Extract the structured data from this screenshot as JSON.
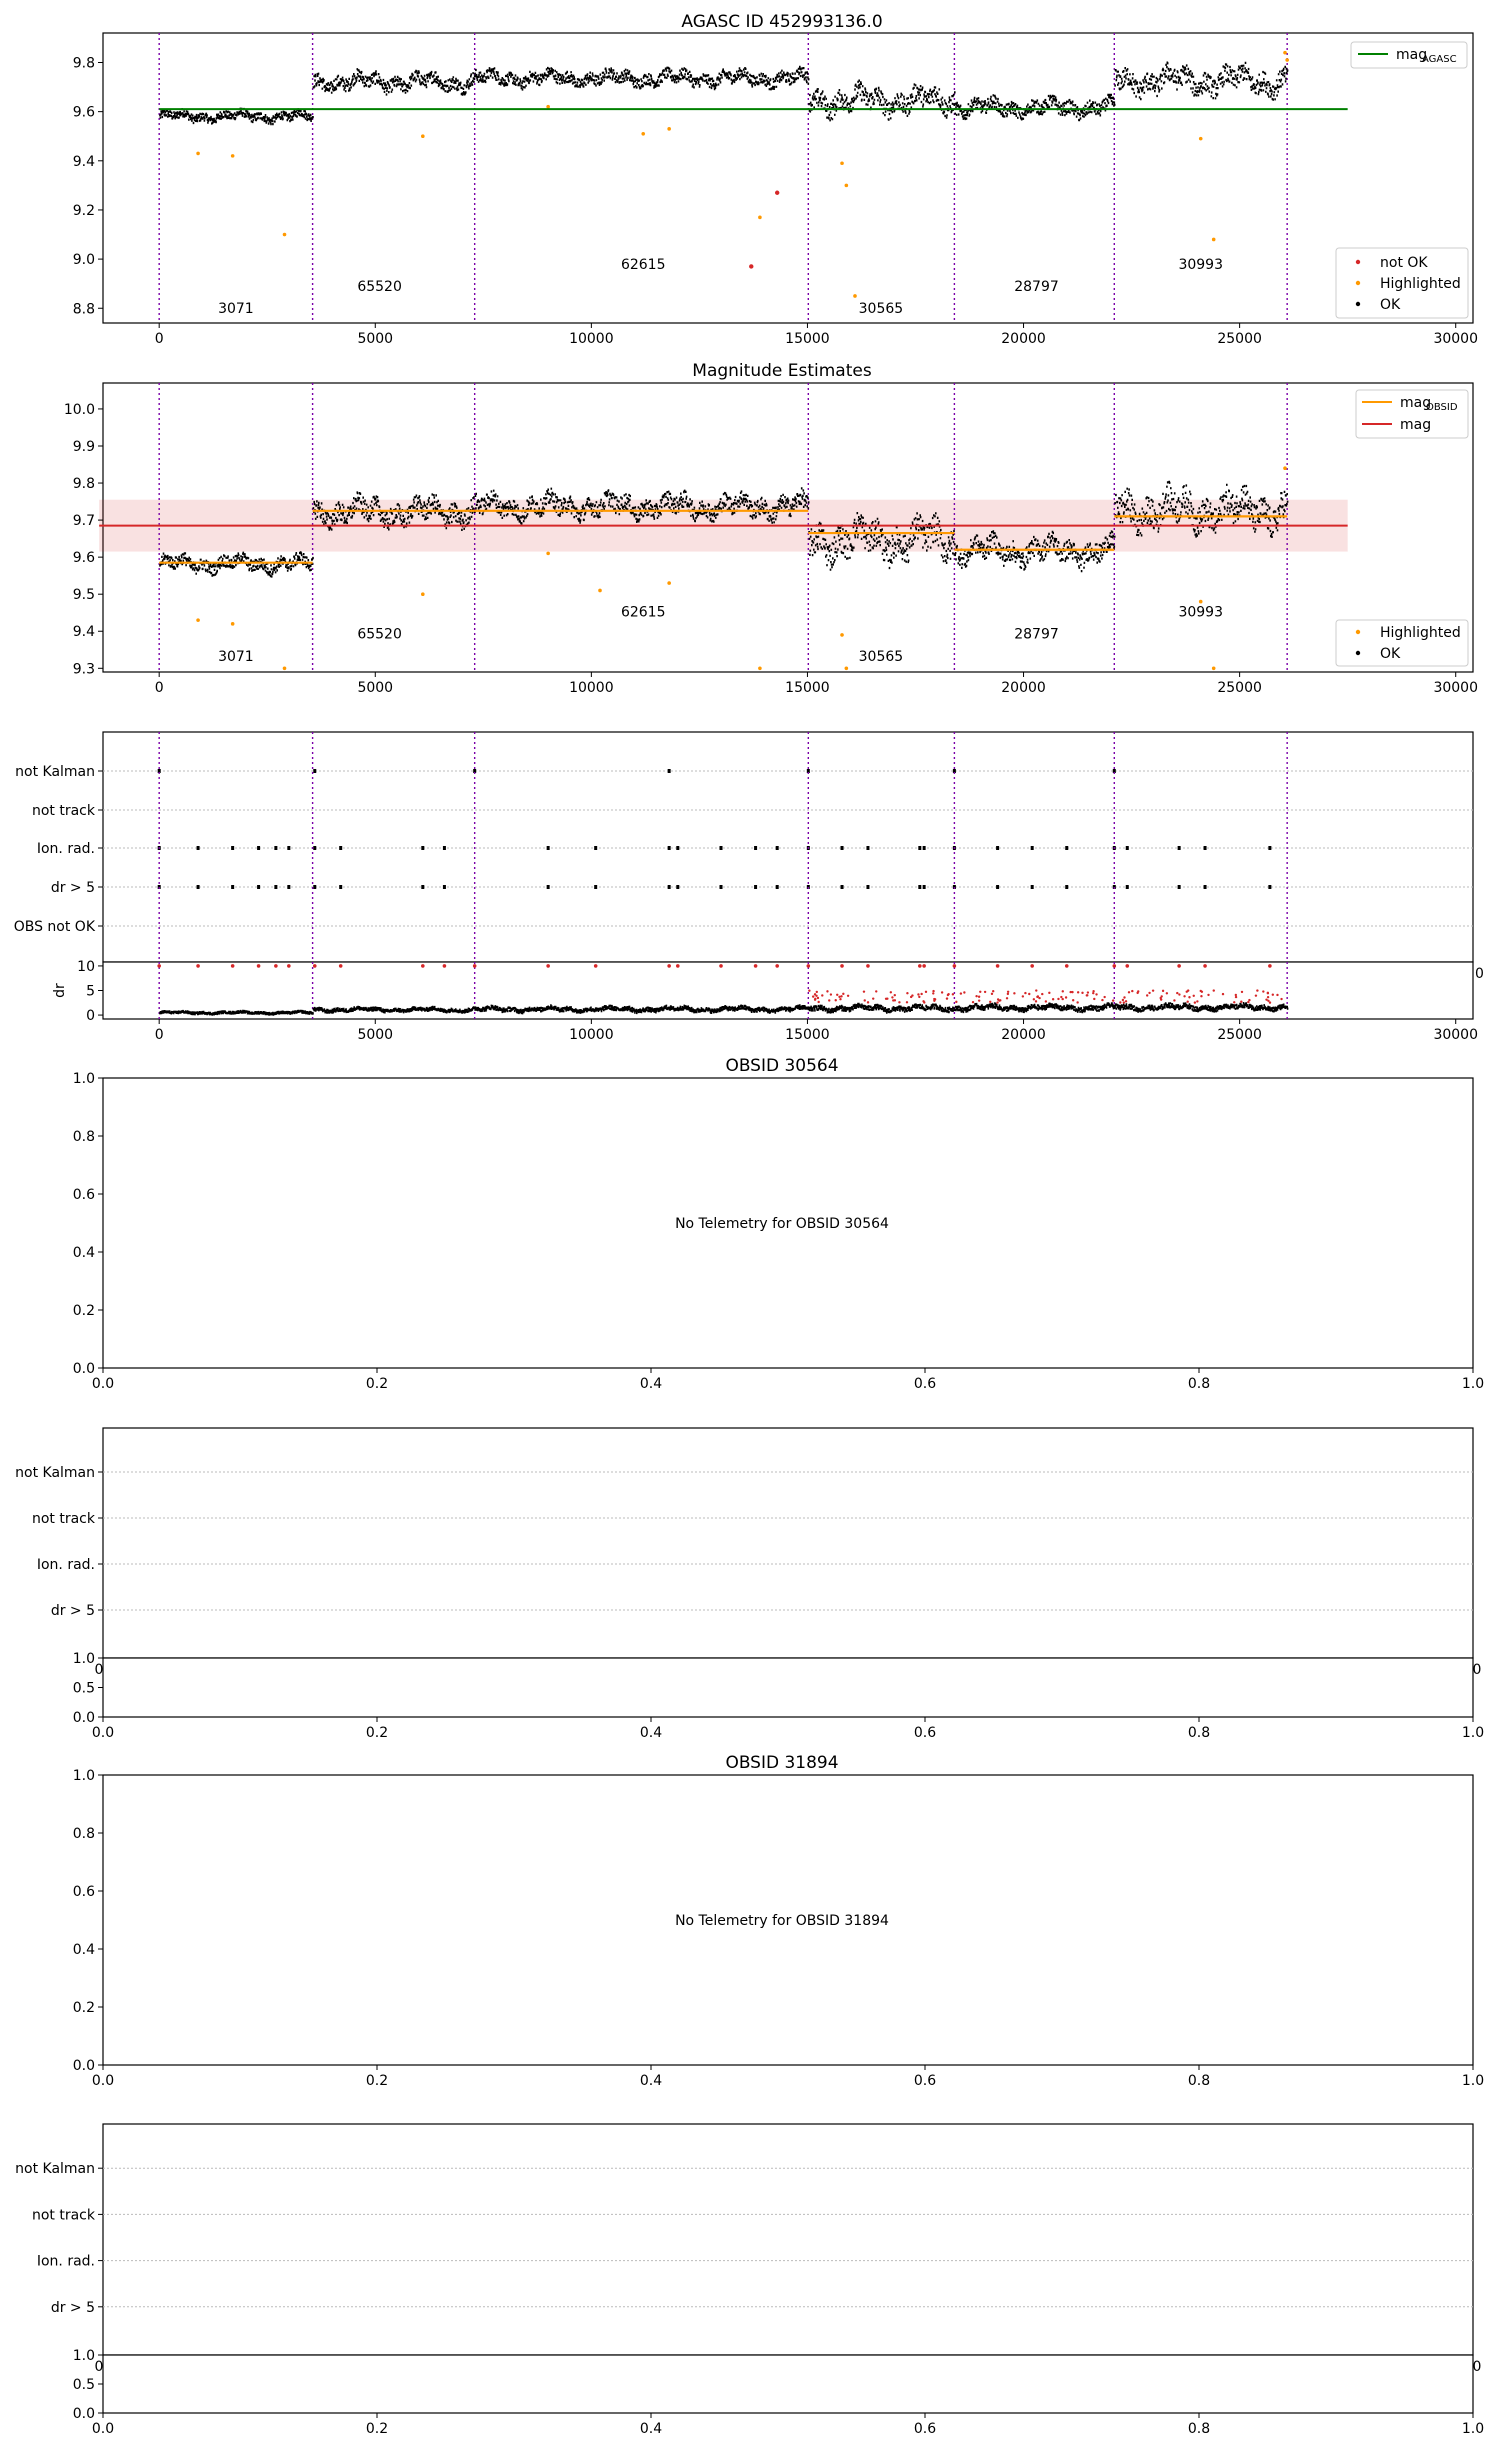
{
  "page": {
    "title": "AGASC ID 452993136.0"
  },
  "chart_data": [
    {
      "id": "agasc",
      "type": "scatter",
      "title": "AGASC ID 452993136.0",
      "xlabel": "",
      "ylabel": "",
      "xlim": [
        -1300,
        30400
      ],
      "ylim": [
        8.74,
        9.92
      ],
      "xticks": [
        0,
        5000,
        10000,
        15000,
        20000,
        25000,
        30000
      ],
      "yticks": [
        8.8,
        9.0,
        9.2,
        9.4,
        9.6,
        9.8
      ],
      "ytick_labels": [
        "8.8",
        "9.0",
        "9.2",
        "9.4",
        "9.6",
        "9.8"
      ],
      "obs_boundaries": [
        0,
        3550,
        7300,
        15020,
        18400,
        22100,
        26100
      ],
      "obsid_labels": [
        {
          "text": "3071",
          "x": 1775,
          "y": 8.78
        },
        {
          "text": "65520",
          "x": 5100,
          "y": 8.87
        },
        {
          "text": "62615",
          "x": 11200,
          "y": 8.96
        },
        {
          "text": "30565",
          "x": 16700,
          "y": 8.78
        },
        {
          "text": "28797",
          "x": 20300,
          "y": 8.87
        },
        {
          "text": "30993",
          "x": 24100,
          "y": 8.96
        }
      ],
      "reference_line": {
        "name": "mag$_{AGASC}$",
        "label_main": "mag",
        "label_sub": "AGASC",
        "y": 9.61,
        "x": [
          0,
          27500
        ],
        "color": "#008000"
      },
      "segments": [
        {
          "x": [
            0,
            3550
          ],
          "mean": 9.585,
          "amp": 0.025
        },
        {
          "x": [
            3550,
            7300
          ],
          "mean": 9.725,
          "amp": 0.04
        },
        {
          "x": [
            7300,
            15020
          ],
          "mean": 9.74,
          "amp": 0.035
        },
        {
          "x": [
            15020,
            18400
          ],
          "mean": 9.65,
          "amp": 0.06
        },
        {
          "x": [
            18400,
            22100
          ],
          "mean": 9.62,
          "amp": 0.04
        },
        {
          "x": [
            22100,
            26100
          ],
          "mean": 9.73,
          "amp": 0.06
        }
      ],
      "highlighted": [
        [
          900,
          9.43
        ],
        [
          1700,
          9.42
        ],
        [
          2900,
          9.1
        ],
        [
          6100,
          9.5
        ],
        [
          9000,
          9.62
        ],
        [
          11200,
          9.51
        ],
        [
          11800,
          9.53
        ],
        [
          13900,
          9.17
        ],
        [
          15800,
          9.39
        ],
        [
          15900,
          9.3
        ],
        [
          16100,
          8.85
        ],
        [
          24100,
          9.49
        ],
        [
          24400,
          9.08
        ],
        [
          26050,
          9.84
        ],
        [
          26100,
          9.81
        ]
      ],
      "not_ok": [
        [
          13700,
          8.97
        ],
        [
          14300,
          9.27
        ]
      ],
      "legend": {
        "upper": [
          {
            "label": "mag",
            "sub": "AGASC",
            "color": "#008000",
            "kind": "line"
          }
        ],
        "lower": [
          {
            "label": "not OK",
            "color": "#d62728",
            "kind": "marker"
          },
          {
            "label": "Highlighted",
            "color": "#ff9900",
            "kind": "marker"
          },
          {
            "label": "OK",
            "color": "#000000",
            "kind": "marker"
          }
        ]
      }
    },
    {
      "id": "estimates",
      "type": "scatter",
      "title": "Magnitude Estimates",
      "xlabel": "",
      "ylabel": "",
      "xlim": [
        -1300,
        30400
      ],
      "ylim": [
        9.29,
        10.07
      ],
      "xticks": [
        0,
        5000,
        10000,
        15000,
        20000,
        25000,
        30000
      ],
      "yticks": [
        9.3,
        9.4,
        9.5,
        9.6,
        9.7,
        9.8,
        9.9,
        10.0
      ],
      "ytick_labels": [
        "9.3",
        "9.4",
        "9.5",
        "9.6",
        "9.7",
        "9.8",
        "9.9",
        "10.0"
      ],
      "obs_boundaries": [
        0,
        3550,
        7300,
        15020,
        18400,
        22100,
        26100
      ],
      "obsid_labels": [
        {
          "text": "3071",
          "x": 1775,
          "y": 9.32
        },
        {
          "text": "65520",
          "x": 5100,
          "y": 9.38
        },
        {
          "text": "62615",
          "x": 11200,
          "y": 9.44
        },
        {
          "text": "30565",
          "x": 16700,
          "y": 9.32
        },
        {
          "text": "28797",
          "x": 20300,
          "y": 9.38
        },
        {
          "text": "30993",
          "x": 24100,
          "y": 9.44
        }
      ],
      "mag_line": {
        "y": 9.685,
        "band": [
          9.615,
          9.755
        ],
        "x": [
          0,
          27500
        ],
        "color": "#d62728"
      },
      "obsid_mags": [
        9.585,
        9.725,
        9.725,
        9.665,
        9.62,
        9.71
      ],
      "segments": [
        {
          "x": [
            0,
            3550
          ],
          "mean": 9.585,
          "amp": 0.025
        },
        {
          "x": [
            3550,
            7300
          ],
          "mean": 9.725,
          "amp": 0.04
        },
        {
          "x": [
            7300,
            15020
          ],
          "mean": 9.74,
          "amp": 0.035
        },
        {
          "x": [
            15020,
            18400
          ],
          "mean": 9.65,
          "amp": 0.06
        },
        {
          "x": [
            18400,
            22100
          ],
          "mean": 9.62,
          "amp": 0.04
        },
        {
          "x": [
            22100,
            26100
          ],
          "mean": 9.73,
          "amp": 0.06
        }
      ],
      "highlighted": [
        [
          900,
          9.43
        ],
        [
          1700,
          9.42
        ],
        [
          2900,
          9.3
        ],
        [
          6100,
          9.5
        ],
        [
          9000,
          9.61
        ],
        [
          10200,
          9.51
        ],
        [
          11800,
          9.53
        ],
        [
          13900,
          9.3
        ],
        [
          15800,
          9.39
        ],
        [
          15900,
          9.3
        ],
        [
          24100,
          9.48
        ],
        [
          24400,
          9.3
        ],
        [
          26050,
          9.84
        ]
      ],
      "legend": [
        {
          "label": "mag",
          "sub": "OBSID",
          "color": "#ff9900",
          "kind": "line"
        },
        {
          "label": "mag",
          "sub": "",
          "color": "#d62728",
          "kind": "line"
        },
        {
          "label": "Highlighted",
          "sub": "",
          "color": "#ff9900",
          "kind": "marker"
        },
        {
          "label": "OK",
          "sub": "",
          "color": "#000000",
          "kind": "marker"
        }
      ]
    },
    {
      "id": "flags",
      "type": "scatter",
      "title": "",
      "xlim": [
        -1300,
        30400
      ],
      "categories": [
        "not Kalman",
        "not track",
        "Ion. rad.",
        "dr > 5",
        "OBS not OK"
      ],
      "obs_boundaries": [
        0,
        3550,
        7300,
        15020,
        18400,
        22100,
        26100
      ],
      "flag_points": {
        "not Kalman": [
          0,
          3600,
          7300,
          11800,
          15020,
          18400,
          22100
        ],
        "not track": [],
        "Ion. rad.": [
          0,
          900,
          1700,
          2300,
          2700,
          3000,
          3600,
          4200,
          6100,
          6600,
          9000,
          10100,
          11800,
          12000,
          13000,
          13800,
          14300,
          15020,
          15800,
          16400,
          17600,
          17700,
          18400,
          19400,
          20200,
          21000,
          22100,
          22400,
          23600,
          24200,
          25700
        ],
        "dr > 5": [
          0,
          900,
          1700,
          2300,
          2700,
          3000,
          3600,
          4200,
          6100,
          6600,
          9000,
          10100,
          11800,
          12000,
          13000,
          13800,
          14300,
          15020,
          15800,
          16400,
          17600,
          17700,
          18400,
          19400,
          20200,
          21000,
          22100,
          22400,
          23600,
          24200,
          25700
        ],
        "OBS not OK": []
      }
    },
    {
      "id": "dr",
      "type": "scatter",
      "ylabel": "dr",
      "xlim": [
        -1300,
        30400
      ],
      "ylim": [
        -0.8,
        10.8
      ],
      "xticks": [
        0,
        5000,
        10000,
        15000,
        20000,
        25000,
        30000
      ],
      "yticks": [
        0,
        5,
        10
      ],
      "ytick_labels": [
        "0",
        "5",
        "10"
      ],
      "obs_boundaries": [
        0,
        3550,
        7300,
        15020,
        18400,
        22100,
        26100
      ],
      "segments": [
        {
          "x": [
            0,
            3550
          ],
          "mean": 0.7,
          "amp": 0.3
        },
        {
          "x": [
            3550,
            7300
          ],
          "mean": 1.3,
          "amp": 0.5
        },
        {
          "x": [
            7300,
            15020
          ],
          "mean": 1.4,
          "amp": 0.6
        },
        {
          "x": [
            15020,
            18400
          ],
          "mean": 1.6,
          "amp": 0.7
        },
        {
          "x": [
            18400,
            22100
          ],
          "mean": 1.7,
          "amp": 0.7
        },
        {
          "x": [
            22100,
            26100
          ],
          "mean": 1.8,
          "amp": 0.7
        }
      ],
      "red_at_ten": [
        0,
        900,
        1700,
        2300,
        2700,
        3000,
        3600,
        4200,
        6100,
        6600,
        7300,
        9000,
        10100,
        11800,
        12000,
        13000,
        13800,
        14300,
        15020,
        15800,
        16400,
        17600,
        17700,
        18400,
        19400,
        20200,
        21000,
        22100,
        22400,
        23600,
        24200,
        25700
      ]
    },
    {
      "id": "obsid-30564",
      "type": "scatter",
      "title": "OBSID 30564",
      "message": "No Telemetry for OBSID 30564",
      "xlim": [
        0,
        1
      ],
      "ylim": [
        0,
        1
      ],
      "xticks": [
        0.0,
        0.2,
        0.4,
        0.6,
        0.8,
        1.0
      ],
      "yticks": [
        0.0,
        0.2,
        0.4,
        0.6,
        0.8,
        1.0
      ],
      "tick_labels": [
        "0.0",
        "0.2",
        "0.4",
        "0.6",
        "0.8",
        "1.0"
      ]
    },
    {
      "id": "obsid-30564-flags",
      "type": "scatter",
      "categories": [
        "not Kalman",
        "not track",
        "Ion. rad.",
        "dr > 5"
      ],
      "bottom_yticks": [
        "0.0",
        "0.5",
        "1.0"
      ],
      "bottom_xticks": [
        "0.0",
        "0.2",
        "0.4",
        "0.6",
        "0.8",
        "1.0"
      ],
      "clipped_left": "0",
      "clipped_right": "0"
    },
    {
      "id": "obsid-31894",
      "type": "scatter",
      "title": "OBSID 31894",
      "message": "No Telemetry for OBSID 31894",
      "xlim": [
        0,
        1
      ],
      "ylim": [
        0,
        1
      ],
      "xticks": [
        0.0,
        0.2,
        0.4,
        0.6,
        0.8,
        1.0
      ],
      "yticks": [
        0.0,
        0.2,
        0.4,
        0.6,
        0.8,
        1.0
      ],
      "tick_labels": [
        "0.0",
        "0.2",
        "0.4",
        "0.6",
        "0.8",
        "1.0"
      ]
    },
    {
      "id": "obsid-31894-flags",
      "type": "scatter",
      "categories": [
        "not Kalman",
        "not track",
        "Ion. rad.",
        "dr > 5"
      ],
      "bottom_yticks": [
        "0.0",
        "0.5",
        "1.0"
      ],
      "bottom_xticks": [
        "0.0",
        "0.2",
        "0.4",
        "0.6",
        "0.8",
        "1.0"
      ],
      "clipped_left": "0",
      "clipped_right": "0"
    }
  ]
}
